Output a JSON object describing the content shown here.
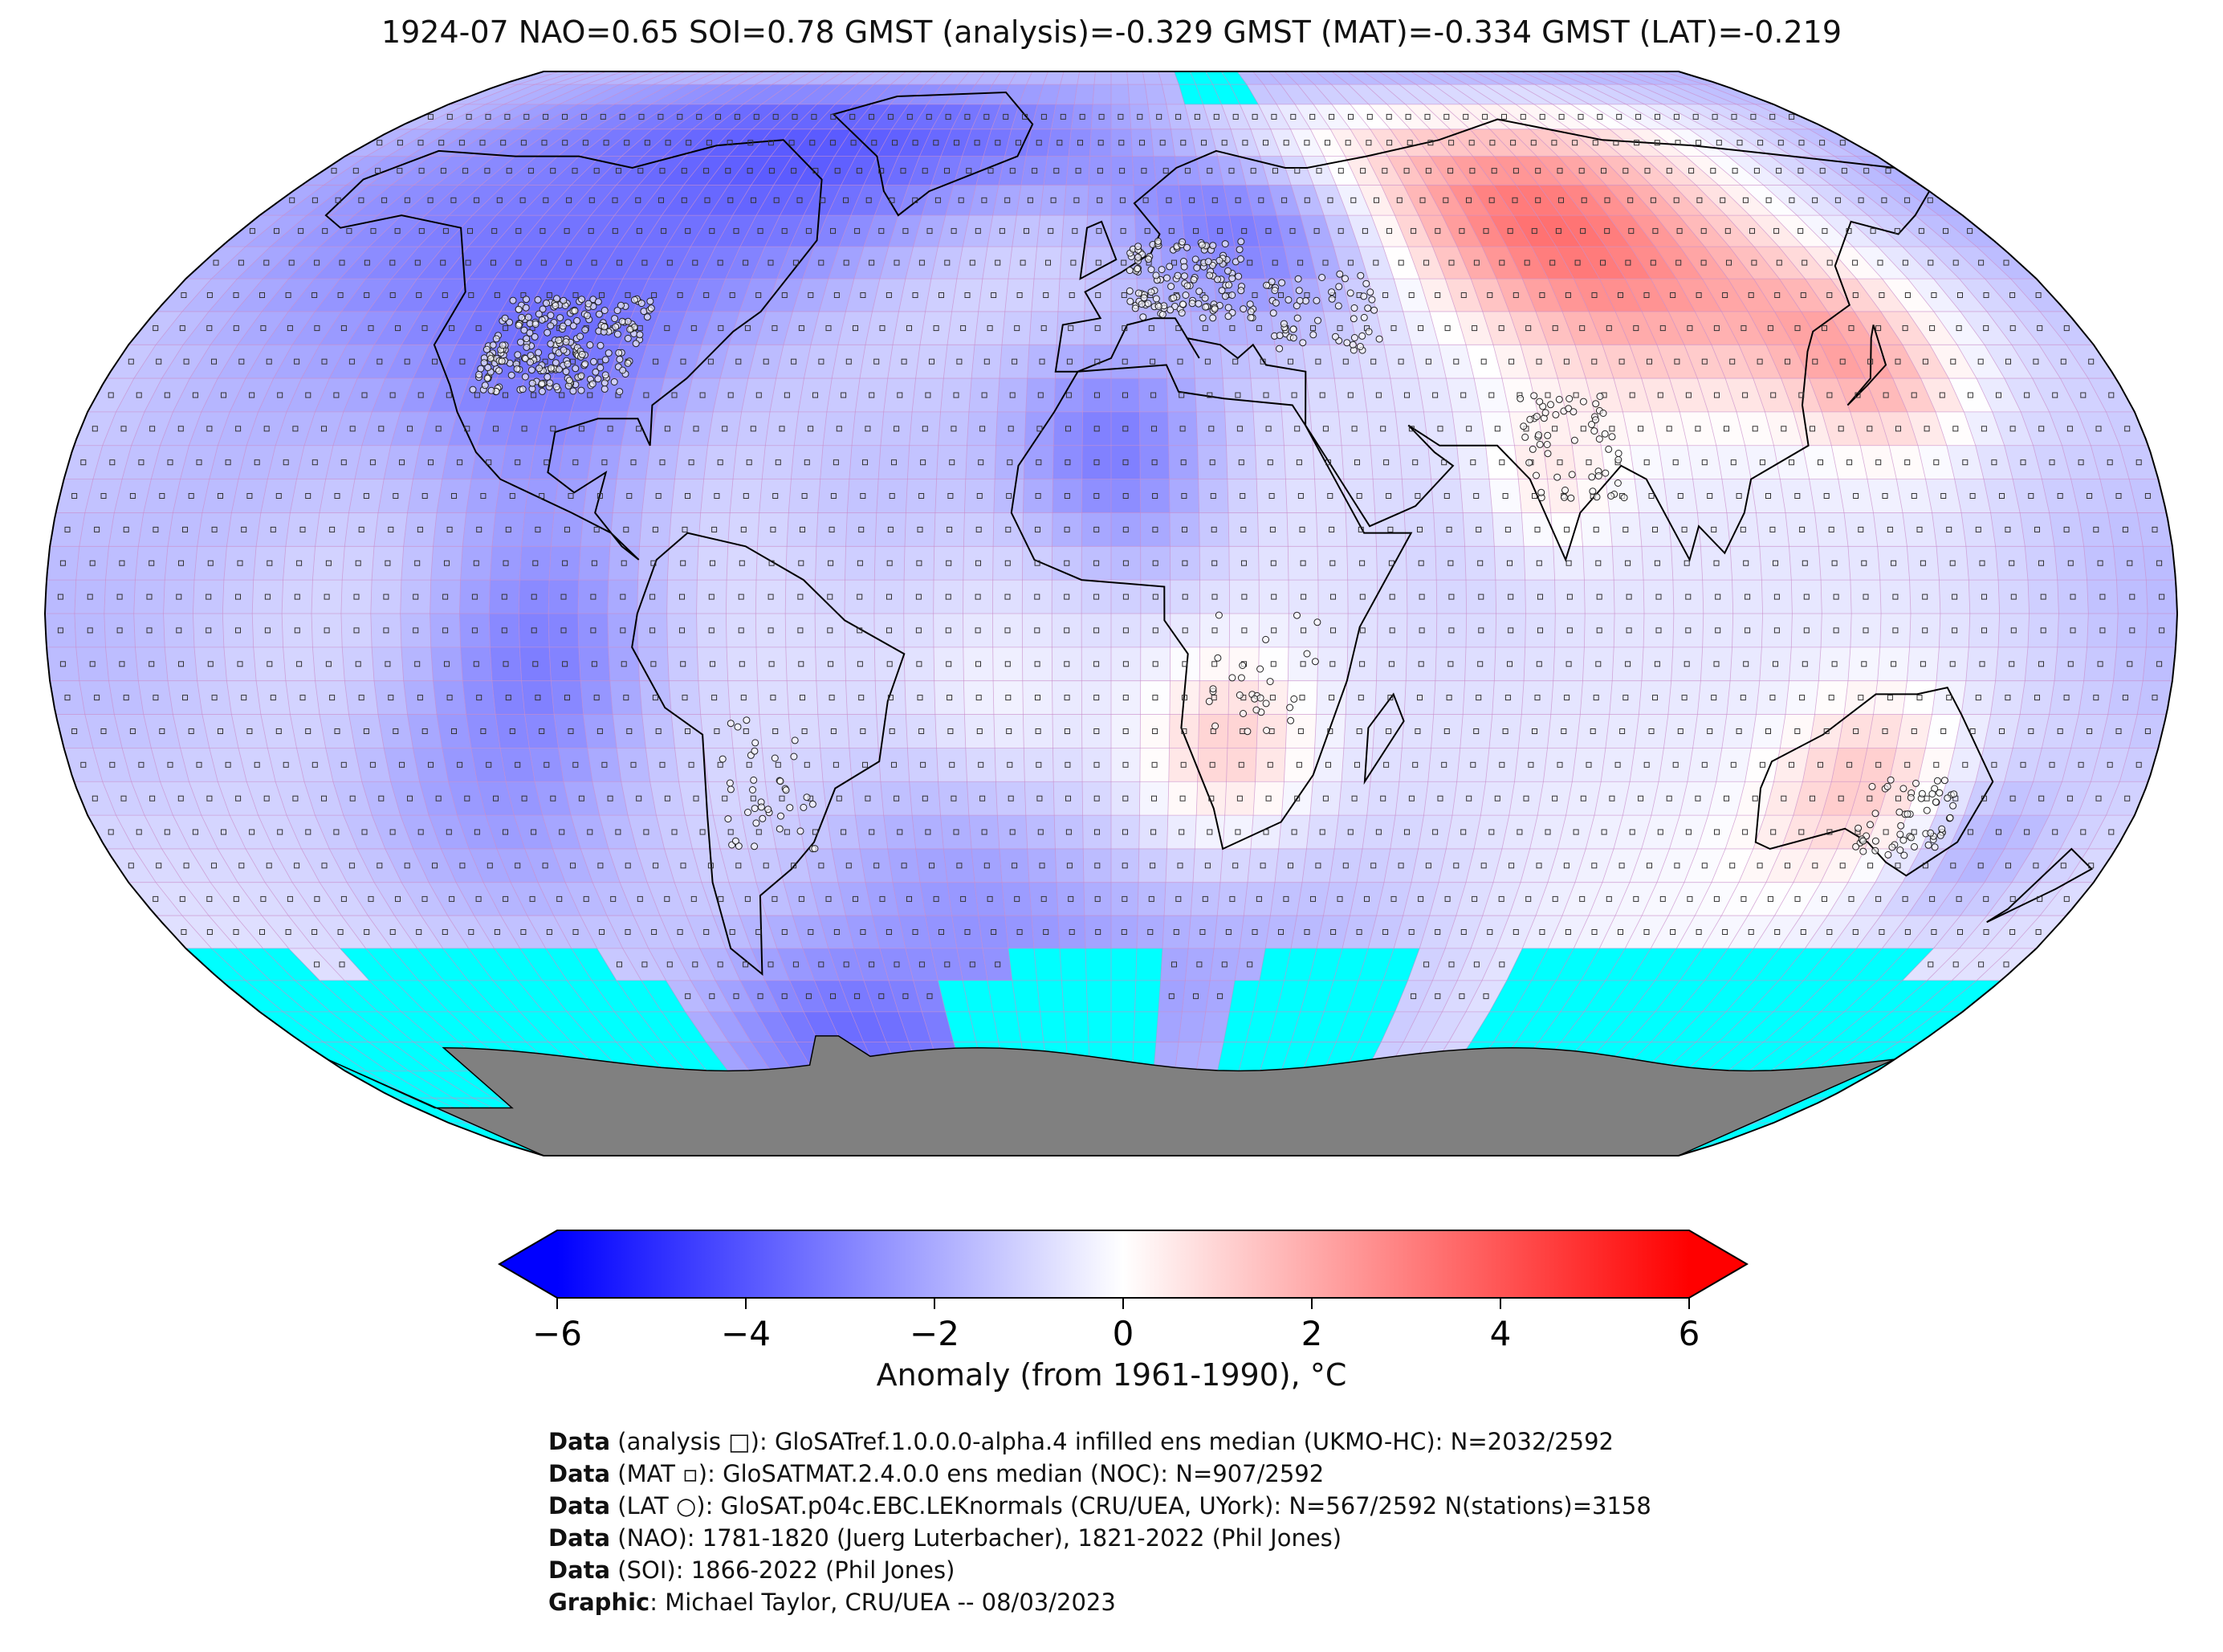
{
  "title": "1924-07 NAO=0.65 SOI=0.78 GMST (analysis)=-0.329 GMST (MAT)=-0.334 GMST (LAT)=-0.219",
  "colorbar": {
    "label": "Anomaly (from 1961-1990), °C",
    "ticks": [
      "−6",
      "−4",
      "−2",
      "0",
      "2",
      "4",
      "6"
    ],
    "min": -6,
    "max": 6,
    "colors": {
      "low": "#0000ff",
      "mid": "#ffffff",
      "high": "#ff0000"
    }
  },
  "map_colors": {
    "ocean_base": "#d9dbf7",
    "sea_ice": "#00ffff",
    "antarctica": "#808080",
    "grid": "#c98bc9",
    "coast": "#000000"
  },
  "credits": [
    {
      "key": "Data",
      "text": " (analysis □): GloSATref.1.0.0.0-alpha.4 infilled ens median (UKMO-HC): N=2032/2592"
    },
    {
      "key": "Data",
      "text": " (MAT ▫): GloSATMAT.2.4.0.0 ens median (NOC): N=907/2592"
    },
    {
      "key": "Data",
      "text": " (LAT ○): GloSAT.p04c.EBC.LEKnormals (CRU/UEA, UYork): N=567/2592 N(stations)=3158"
    },
    {
      "key": "Data",
      "text": " (NAO): 1781-1820 (Juerg Luterbacher), 1821-2022 (Phil Jones)"
    },
    {
      "key": "Data",
      "text": " (SOI): 1866-2022 (Phil Jones)"
    },
    {
      "key": "Graphic",
      "text": ": Michael Taylor, CRU/UEA -- 08/03/2023"
    }
  ]
}
